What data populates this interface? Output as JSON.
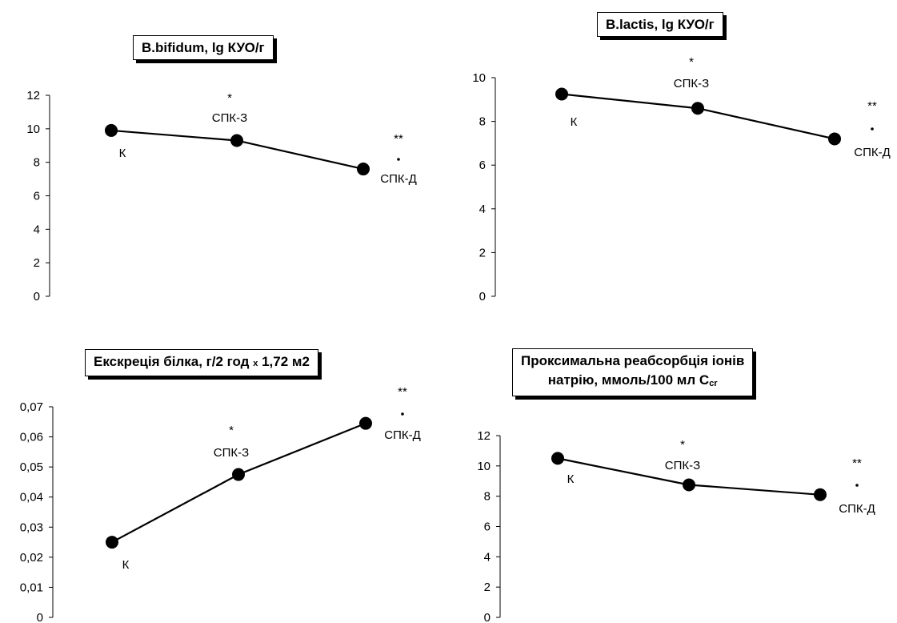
{
  "chart_data": [
    {
      "type": "line",
      "title": "B.bifidum, lg КУО/г",
      "categories": [
        "К",
        "СПК-З",
        "СПК-Д"
      ],
      "values": [
        9.9,
        9.3,
        7.6
      ],
      "ylim": [
        0,
        12
      ],
      "yticks": [
        "0",
        "2",
        "4",
        "6",
        "8",
        "10",
        "12"
      ],
      "annotations": [
        {
          "category": "СПК-З",
          "text": "*"
        },
        {
          "category": "СПК-Д",
          "text": "**"
        }
      ]
    },
    {
      "type": "line",
      "title": "B.lactis, lg КУО/г",
      "categories": [
        "К",
        "СПК-З",
        "СПК-Д"
      ],
      "values": [
        9.25,
        8.6,
        7.2
      ],
      "ylim": [
        0,
        10
      ],
      "yticks": [
        "0",
        "2",
        "4",
        "6",
        "8",
        "10"
      ],
      "annotations": [
        {
          "category": "СПК-З",
          "text": "*"
        },
        {
          "category": "СПК-Д",
          "text": "**"
        }
      ]
    },
    {
      "type": "line",
      "title_main": "Екскреція білка, г/2 год",
      "title_small": "x",
      "title_end": "1,72 м2",
      "categories": [
        "К",
        "СПК-З",
        "СПК-Д"
      ],
      "values": [
        0.025,
        0.0475,
        0.0645
      ],
      "ylim": [
        0,
        0.07
      ],
      "yticks": [
        "0",
        "0,01",
        "0,02",
        "0,03",
        "0,04",
        "0,05",
        "0,06",
        "0,07"
      ],
      "annotations": [
        {
          "category": "СПК-З",
          "text": "*"
        },
        {
          "category": "СПК-Д",
          "text": "**"
        }
      ]
    },
    {
      "type": "line",
      "title_line1": "Проксимальна реабсорбція іонів",
      "title_line2": "натрію, ммоль/100 мл С",
      "title_sub": "cr",
      "categories": [
        "К",
        "СПК-З",
        "СПК-Д"
      ],
      "values": [
        10.5,
        8.75,
        8.1
      ],
      "ylim": [
        0,
        12
      ],
      "yticks": [
        "0",
        "2",
        "4",
        "6",
        "8",
        "10",
        "12"
      ],
      "annotations": [
        {
          "category": "СПК-З",
          "text": "*"
        },
        {
          "category": "СПК-Д",
          "text": "**"
        }
      ]
    }
  ]
}
